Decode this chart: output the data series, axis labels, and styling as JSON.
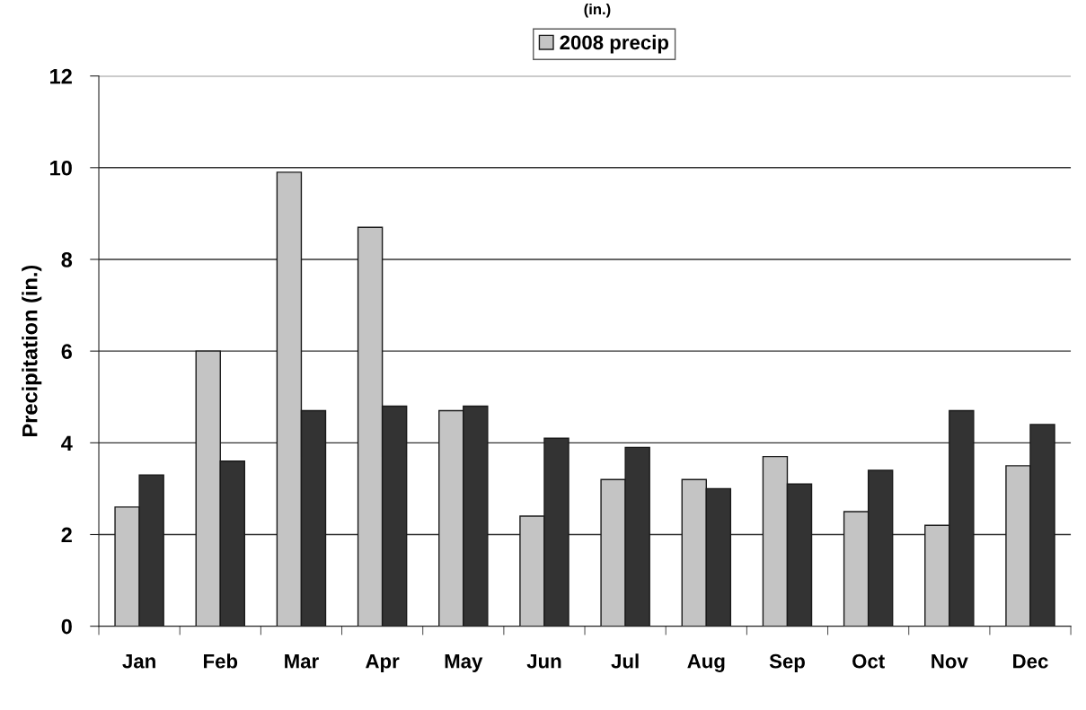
{
  "chart_data": {
    "type": "bar",
    "title": "(in.)",
    "ylabel": "Precipitation (in.)",
    "categories": [
      "Jan",
      "Feb",
      "Mar",
      "Apr",
      "May",
      "Jun",
      "Jul",
      "Aug",
      "Sep",
      "Oct",
      "Nov",
      "Dec"
    ],
    "series": [
      {
        "name": "2008 precip",
        "color": "#c4c4c4",
        "values": [
          2.6,
          6.0,
          9.9,
          8.7,
          4.7,
          2.4,
          3.2,
          3.2,
          3.7,
          2.5,
          2.2,
          3.5
        ]
      },
      {
        "color": "#333333",
        "values": [
          3.3,
          3.6,
          4.7,
          4.8,
          4.8,
          4.1,
          3.9,
          3.0,
          3.1,
          3.4,
          4.7,
          4.4
        ]
      }
    ],
    "ylim": [
      0,
      12
    ],
    "yticks": [
      0,
      2,
      4,
      6,
      8,
      10,
      12
    ],
    "grid": "y",
    "legend": "top"
  }
}
